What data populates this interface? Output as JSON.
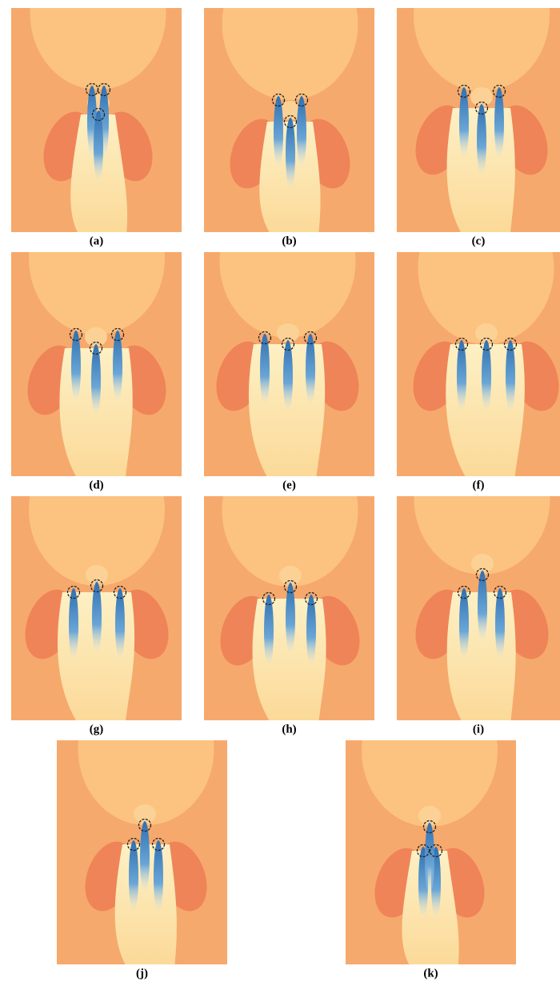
{
  "figure": {
    "panels": [
      "(a)",
      "(b)",
      "(c)",
      "(d)",
      "(e)",
      "(f)",
      "(g)",
      "(h)",
      "(i)",
      "(j)",
      "(k)"
    ]
  }
}
